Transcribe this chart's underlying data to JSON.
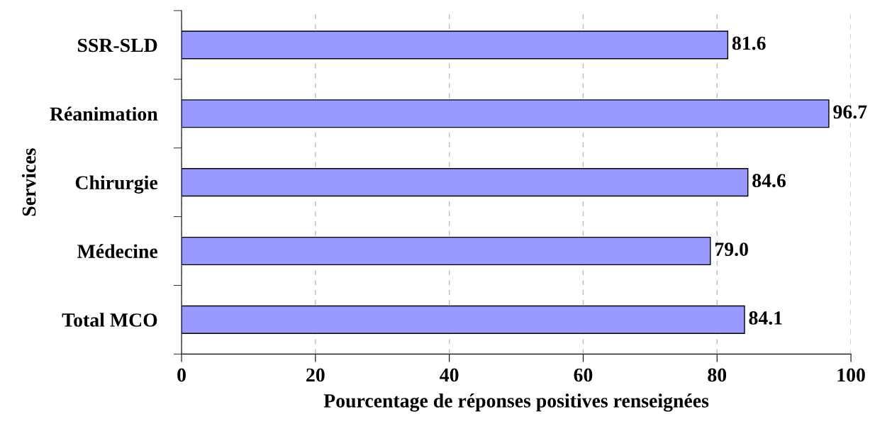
{
  "chart_data": {
    "type": "bar",
    "orientation": "horizontal",
    "xlabel": "Pourcentage de réponses positives renseignées",
    "ylabel": "Services",
    "categories": [
      "SSR-SLD",
      "Réanimation",
      "Chirurgie",
      "Médecine",
      "Total MCO"
    ],
    "values": [
      81.6,
      96.7,
      84.6,
      79.0,
      84.1
    ],
    "value_labels": [
      "81.6",
      "96.7",
      "84.6",
      "79.0",
      "84.1"
    ],
    "color": "#9999ff",
    "xlim": [
      0,
      100
    ],
    "xticks": [
      0,
      20,
      40,
      60,
      80,
      100
    ],
    "grid": "x"
  }
}
